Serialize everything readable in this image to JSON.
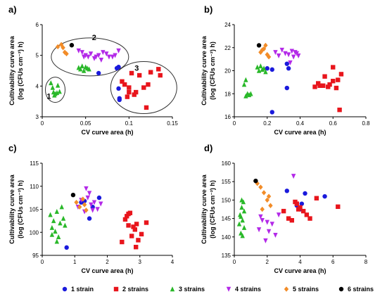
{
  "legend": [
    {
      "key": "s1",
      "label": "1 strain",
      "color": "#1a1adc",
      "marker": "circle"
    },
    {
      "key": "s2",
      "label": "2 strains",
      "color": "#e8151c",
      "marker": "square"
    },
    {
      "key": "s3",
      "label": "3 strains",
      "color": "#29b829",
      "marker": "triangle-up"
    },
    {
      "key": "s4",
      "label": "4 strains",
      "color": "#b329e8",
      "marker": "triangle-down"
    },
    {
      "key": "s5",
      "label": "5 strains",
      "color": "#f28c28",
      "marker": "diamond"
    },
    {
      "key": "s6",
      "label": "6 strains",
      "color": "#000000",
      "marker": "circle"
    }
  ],
  "chart_data": [
    {
      "panel": "a)",
      "type": "scatter",
      "xlabel": "CV curve area (h)",
      "ylabel_lines": [
        "Cultivability curve area",
        "(log (CFUs cm⁻²) h)"
      ],
      "xlim": [
        0,
        0.15
      ],
      "ylim": [
        3,
        6
      ],
      "xticks": [
        "0",
        "0.05",
        "0.1",
        "0.15"
      ],
      "xtick_values": [
        0,
        0.05,
        0.1,
        0.15
      ],
      "yticks": [
        "3",
        "4",
        "5",
        "6"
      ],
      "ytick_values": [
        3,
        4,
        5,
        6
      ],
      "series": [
        {
          "key": "s1",
          "points": [
            [
              0.065,
              4.42
            ],
            [
              0.086,
              4.58
            ],
            [
              0.088,
              4.62
            ],
            [
              0.088,
              3.92
            ],
            [
              0.089,
              3.55
            ],
            [
              0.089,
              3.6
            ]
          ]
        },
        {
          "key": "s2",
          "points": [
            [
              0.092,
              4.15
            ],
            [
              0.095,
              4.05
            ],
            [
              0.098,
              3.65
            ],
            [
              0.1,
              3.95
            ],
            [
              0.103,
              4.42
            ],
            [
              0.106,
              3.72
            ],
            [
              0.108,
              3.8
            ],
            [
              0.112,
              4.35
            ],
            [
              0.117,
              3.95
            ],
            [
              0.12,
              3.3
            ],
            [
              0.122,
              4.05
            ],
            [
              0.125,
              4.45
            ],
            [
              0.134,
              4.55
            ],
            [
              0.136,
              4.35
            ],
            [
              0.1,
              3.8
            ]
          ]
        },
        {
          "key": "s3",
          "points": [
            [
              0.01,
              4.1
            ],
            [
              0.012,
              3.95
            ],
            [
              0.013,
              3.8
            ],
            [
              0.015,
              3.75
            ],
            [
              0.017,
              3.78
            ],
            [
              0.018,
              4.02
            ],
            [
              0.02,
              3.82
            ],
            [
              0.014,
              3.7
            ],
            [
              0.042,
              4.6
            ],
            [
              0.044,
              4.55
            ],
            [
              0.046,
              4.65
            ],
            [
              0.048,
              4.5
            ],
            [
              0.05,
              4.62
            ],
            [
              0.052,
              4.58
            ],
            [
              0.054,
              4.55
            ]
          ]
        },
        {
          "key": "s4",
          "points": [
            [
              0.042,
              5.15
            ],
            [
              0.046,
              5.1
            ],
            [
              0.048,
              4.95
            ],
            [
              0.05,
              5.0
            ],
            [
              0.053,
              4.95
            ],
            [
              0.056,
              5.05
            ],
            [
              0.06,
              4.9
            ],
            [
              0.062,
              4.95
            ],
            [
              0.065,
              5.0
            ],
            [
              0.068,
              4.85
            ],
            [
              0.07,
              5.1
            ],
            [
              0.074,
              5.05
            ],
            [
              0.077,
              4.95
            ],
            [
              0.081,
              4.95
            ],
            [
              0.084,
              5.0
            ],
            [
              0.088,
              5.15
            ]
          ]
        },
        {
          "key": "s5",
          "points": [
            [
              0.018,
              5.28
            ],
            [
              0.022,
              5.35
            ],
            [
              0.024,
              5.25
            ],
            [
              0.026,
              5.1
            ],
            [
              0.028,
              5.05
            ]
          ]
        },
        {
          "key": "s6",
          "points": [
            [
              0.034,
              5.33
            ]
          ]
        }
      ]
    },
    {
      "panel": "b)",
      "type": "scatter",
      "xlabel": "CV curve area (h)",
      "ylabel_lines": [
        "Cultivability curve area",
        "(log (CFUs cm⁻²) h)"
      ],
      "xlim": [
        0,
        0.8
      ],
      "ylim": [
        16,
        24
      ],
      "xticks": [
        "0",
        "0.2",
        "0.4",
        "0.6",
        "0.8"
      ],
      "xtick_values": [
        0,
        0.2,
        0.4,
        0.6,
        0.8
      ],
      "yticks": [
        "16",
        "18",
        "20",
        "22",
        "24"
      ],
      "ytick_values": [
        16,
        18,
        20,
        22,
        24
      ],
      "series": [
        {
          "key": "s1",
          "points": [
            [
              0.23,
              16.4
            ],
            [
              0.2,
              20.2
            ],
            [
              0.23,
              20.1
            ],
            [
              0.32,
              20.6
            ],
            [
              0.33,
              20.2
            ],
            [
              0.32,
              18.5
            ]
          ]
        },
        {
          "key": "s2",
          "points": [
            [
              0.49,
              18.6
            ],
            [
              0.51,
              18.9
            ],
            [
              0.52,
              18.7
            ],
            [
              0.54,
              18.7
            ],
            [
              0.55,
              19.5
            ],
            [
              0.57,
              18.6
            ],
            [
              0.58,
              18.8
            ],
            [
              0.6,
              20.3
            ],
            [
              0.6,
              19.1
            ],
            [
              0.62,
              18.5
            ],
            [
              0.63,
              19.2
            ],
            [
              0.64,
              16.6
            ],
            [
              0.65,
              19.7
            ]
          ]
        },
        {
          "key": "s3",
          "points": [
            [
              0.06,
              18.8
            ],
            [
              0.07,
              19.2
            ],
            [
              0.08,
              18.0
            ],
            [
              0.09,
              17.9
            ],
            [
              0.1,
              18.0
            ],
            [
              0.07,
              17.8
            ],
            [
              0.14,
              20.3
            ],
            [
              0.15,
              20.0
            ],
            [
              0.16,
              20.4
            ],
            [
              0.17,
              20.1
            ],
            [
              0.18,
              20.2
            ],
            [
              0.19,
              19.9
            ]
          ]
        },
        {
          "key": "s4",
          "points": [
            [
              0.25,
              21.6
            ],
            [
              0.27,
              21.3
            ],
            [
              0.29,
              21.8
            ],
            [
              0.31,
              21.5
            ],
            [
              0.33,
              21.4
            ],
            [
              0.35,
              21.7
            ],
            [
              0.36,
              21.2
            ],
            [
              0.37,
              21.6
            ],
            [
              0.38,
              21.5
            ],
            [
              0.34,
              20.7
            ],
            [
              0.39,
              21.3
            ]
          ]
        },
        {
          "key": "s5",
          "points": [
            [
              0.16,
              21.6
            ],
            [
              0.18,
              21.9
            ],
            [
              0.19,
              22.2
            ],
            [
              0.2,
              21.4
            ],
            [
              0.21,
              21.2
            ],
            [
              0.17,
              21.8
            ]
          ]
        },
        {
          "key": "s6",
          "points": [
            [
              0.15,
              22.2
            ]
          ]
        }
      ]
    },
    {
      "panel": "c)",
      "type": "scatter",
      "xlabel": "CV curve area (h)",
      "ylabel_lines": [
        "Cultivability curve area",
        "(log (CFUs cm⁻²) h)"
      ],
      "xlim": [
        0,
        4
      ],
      "ylim": [
        95,
        115
      ],
      "xticks": [
        "0",
        "1",
        "2",
        "3",
        "4"
      ],
      "xtick_values": [
        0,
        1,
        2,
        3,
        4
      ],
      "yticks": [
        "95",
        "100",
        "105",
        "110",
        "115"
      ],
      "ytick_values": [
        95,
        100,
        105,
        110,
        115
      ],
      "series": [
        {
          "key": "s1",
          "points": [
            [
              0.75,
              96.7
            ],
            [
              1.2,
              106.5
            ],
            [
              1.45,
              103.0
            ],
            [
              1.55,
              105.5
            ],
            [
              1.75,
              107.5
            ],
            [
              1.3,
              106.8
            ]
          ]
        },
        {
          "key": "s2",
          "points": [
            [
              2.45,
              97.9
            ],
            [
              2.55,
              102.8
            ],
            [
              2.6,
              103.5
            ],
            [
              2.65,
              101.5
            ],
            [
              2.7,
              104.2
            ],
            [
              2.75,
              99.2
            ],
            [
              2.8,
              101.2
            ],
            [
              2.85,
              100.6
            ],
            [
              2.9,
              101.8
            ],
            [
              2.95,
              98.3
            ],
            [
              3.05,
              99.6
            ],
            [
              2.88,
              96.8
            ],
            [
              3.2,
              102.1
            ],
            [
              2.65,
              104.0
            ]
          ]
        },
        {
          "key": "s3",
          "points": [
            [
              0.25,
              103.8
            ],
            [
              0.3,
              101.0
            ],
            [
              0.35,
              102.5
            ],
            [
              0.4,
              100.2
            ],
            [
              0.45,
              104.5
            ],
            [
              0.5,
              99.0
            ],
            [
              0.55,
              102.0
            ],
            [
              0.6,
              105.5
            ],
            [
              0.65,
              103.0
            ],
            [
              0.7,
              101.5
            ],
            [
              0.3,
              99.5
            ],
            [
              0.45,
              98.0
            ]
          ]
        },
        {
          "key": "s4",
          "points": [
            [
              1.1,
              105.5
            ],
            [
              1.2,
              107.0
            ],
            [
              1.3,
              104.5
            ],
            [
              1.35,
              109.5
            ],
            [
              1.4,
              107.5
            ],
            [
              1.5,
              106.0
            ],
            [
              1.55,
              104.8
            ],
            [
              1.6,
              106.5
            ],
            [
              1.7,
              105.0
            ],
            [
              1.8,
              106.2
            ],
            [
              1.45,
              108.5
            ]
          ]
        },
        {
          "key": "s5",
          "points": [
            [
              1.05,
              106.5
            ],
            [
              1.15,
              105.5
            ],
            [
              1.25,
              107.2
            ],
            [
              1.3,
              106.0
            ],
            [
              1.35,
              104.8
            ]
          ]
        },
        {
          "key": "s6",
          "points": [
            [
              0.95,
              108.1
            ]
          ]
        }
      ]
    },
    {
      "panel": "d)",
      "type": "scatter",
      "xlabel": "CV curve area (h)",
      "ylabel_lines": [
        "Cultivability curve area",
        "(log (CFUs cm⁻²) h)"
      ],
      "xlim": [
        0,
        8
      ],
      "ylim": [
        135,
        160
      ],
      "xticks": [
        "0",
        "2",
        "4",
        "6",
        "8"
      ],
      "xtick_values": [
        0,
        2,
        4,
        6,
        8
      ],
      "yticks": [
        "135",
        "140",
        "145",
        "150",
        "155",
        "160"
      ],
      "ytick_values": [
        135,
        140,
        145,
        150,
        155,
        160
      ],
      "series": [
        {
          "key": "s1",
          "points": [
            [
              3.2,
              152.5
            ],
            [
              3.8,
              148.5
            ],
            [
              4.0,
              147.5
            ],
            [
              4.3,
              151.8
            ],
            [
              5.5,
              151.0
            ],
            [
              4.1,
              149.0
            ]
          ]
        },
        {
          "key": "s2",
          "points": [
            [
              3.0,
              147.0
            ],
            [
              3.3,
              145.0
            ],
            [
              3.5,
              144.5
            ],
            [
              3.7,
              149.5
            ],
            [
              3.8,
              149.0
            ],
            [
              4.0,
              148.0
            ],
            [
              4.2,
              147.0
            ],
            [
              4.4,
              146.0
            ],
            [
              4.6,
              145.0
            ],
            [
              5.0,
              150.5
            ],
            [
              6.3,
              148.2
            ],
            [
              3.9,
              147.5
            ]
          ]
        },
        {
          "key": "s3",
          "points": [
            [
              0.3,
              143.5
            ],
            [
              0.35,
              146.0
            ],
            [
              0.4,
              141.0
            ],
            [
              0.45,
              148.0
            ],
            [
              0.5,
              144.5
            ],
            [
              0.55,
              149.5
            ],
            [
              0.6,
              142.5
            ],
            [
              0.5,
              140.3
            ],
            [
              0.4,
              145.5
            ],
            [
              0.6,
              147.0
            ],
            [
              0.45,
              150.0
            ]
          ]
        },
        {
          "key": "s4",
          "points": [
            [
              1.5,
              142.0
            ],
            [
              1.7,
              144.5
            ],
            [
              1.9,
              139.0
            ],
            [
              2.1,
              141.5
            ],
            [
              2.3,
              143.5
            ],
            [
              2.5,
              140.5
            ],
            [
              2.7,
              146.0
            ],
            [
              3.6,
              156.5
            ],
            [
              1.6,
              145.5
            ],
            [
              2.0,
              144.0
            ]
          ]
        },
        {
          "key": "s5",
          "points": [
            [
              1.4,
              154.5
            ],
            [
              1.6,
              153.5
            ],
            [
              1.8,
              152.0
            ],
            [
              2.0,
              150.0
            ],
            [
              2.2,
              148.5
            ],
            [
              1.7,
              147.5
            ],
            [
              2.1,
              151.0
            ]
          ]
        },
        {
          "key": "s6",
          "points": [
            [
              1.3,
              155.2
            ]
          ]
        }
      ]
    }
  ],
  "group_labels": [
    "1",
    "2",
    "3"
  ]
}
